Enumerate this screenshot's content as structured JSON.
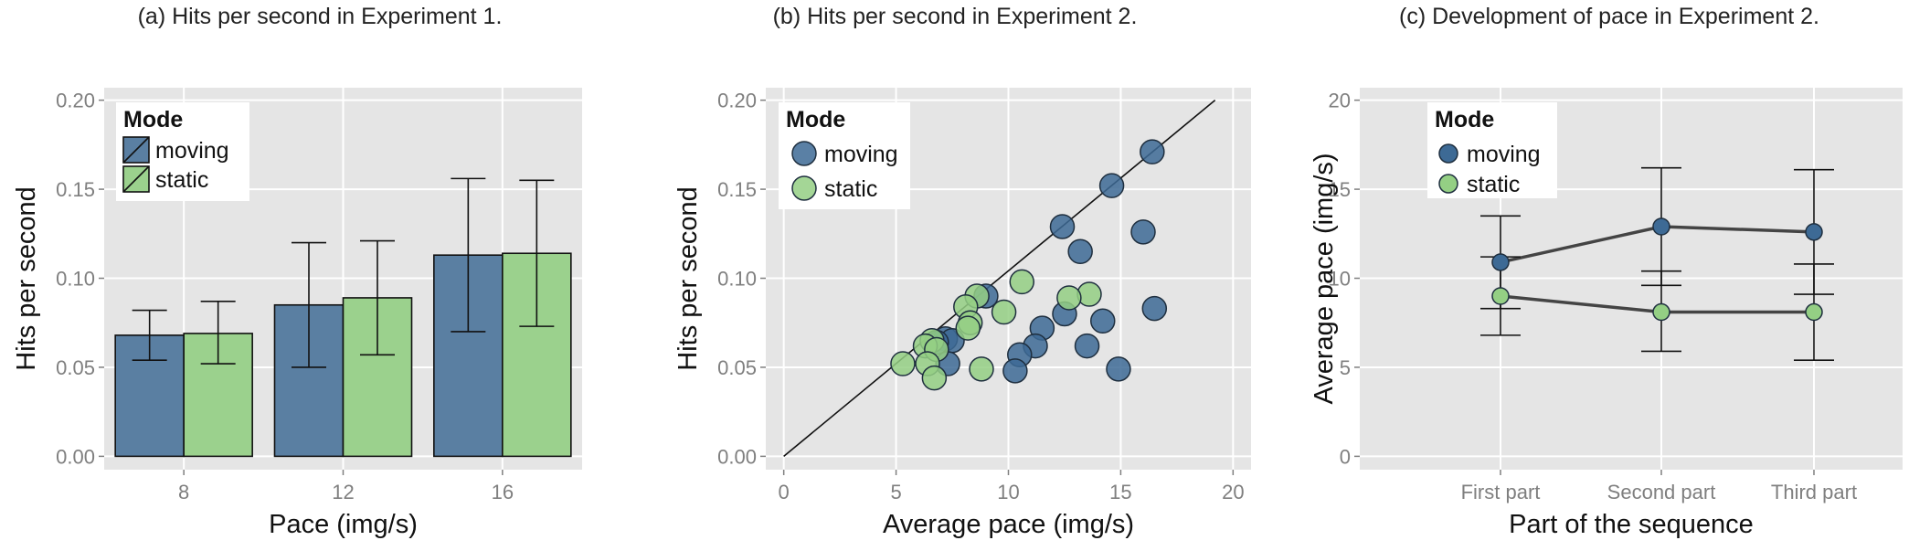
{
  "chart_data": [
    {
      "type": "bar",
      "title": "(a) Hits per second in Experiment 1.",
      "xlabel": "Pace (img/s)",
      "ylabel": "Hits per second",
      "categories": [
        "8",
        "12",
        "16"
      ],
      "yticks": [
        "0.00",
        "0.05",
        "0.10",
        "0.15",
        "0.20"
      ],
      "ylim": [
        -0.0075,
        0.207
      ],
      "grid": true,
      "legend": {
        "title": "Mode",
        "placement": "top-left"
      },
      "series": [
        {
          "name": "moving",
          "color": "#5a7fa2",
          "values": [
            0.068,
            0.085,
            0.113
          ],
          "err_low": [
            0.054,
            0.05,
            0.07
          ],
          "err_high": [
            0.082,
            0.12,
            0.156
          ]
        },
        {
          "name": "static",
          "color": "#9bd18d",
          "values": [
            0.069,
            0.089,
            0.114
          ],
          "err_low": [
            0.052,
            0.057,
            0.073
          ],
          "err_high": [
            0.087,
            0.121,
            0.155
          ]
        }
      ]
    },
    {
      "type": "scatter",
      "title": "(b) Hits per second in Experiment 2.",
      "xlabel": "Average pace (img/s)",
      "ylabel": "Hits per second",
      "xticks": [
        "0",
        "5",
        "10",
        "15",
        "20"
      ],
      "yticks": [
        "0.00",
        "0.05",
        "0.10",
        "0.15",
        "0.20"
      ],
      "xlim": [
        -0.8,
        20.8
      ],
      "ylim": [
        -0.0075,
        0.207
      ],
      "grid": true,
      "reference_line": {
        "x": [
          0,
          19.2
        ],
        "y": [
          0,
          0.2
        ]
      },
      "legend": {
        "title": "Mode",
        "placement": "top-left"
      },
      "series": [
        {
          "name": "moving",
          "color": "#3d6a95",
          "points": [
            [
              16.4,
              0.171
            ],
            [
              14.6,
              0.152
            ],
            [
              12.4,
              0.129
            ],
            [
              16.0,
              0.126
            ],
            [
              13.2,
              0.115
            ],
            [
              9.0,
              0.09
            ],
            [
              16.5,
              0.083
            ],
            [
              12.5,
              0.08
            ],
            [
              14.2,
              0.076
            ],
            [
              11.5,
              0.072
            ],
            [
              7.2,
              0.066
            ],
            [
              7.5,
              0.065
            ],
            [
              6.8,
              0.064
            ],
            [
              11.2,
              0.062
            ],
            [
              13.5,
              0.062
            ],
            [
              10.5,
              0.057
            ],
            [
              7.3,
              0.052
            ],
            [
              10.3,
              0.048
            ],
            [
              14.9,
              0.049
            ]
          ]
        },
        {
          "name": "static",
          "color": "#94cf84",
          "points": [
            [
              10.6,
              0.098
            ],
            [
              8.6,
              0.09
            ],
            [
              13.6,
              0.091
            ],
            [
              12.7,
              0.089
            ],
            [
              8.1,
              0.084
            ],
            [
              9.8,
              0.081
            ],
            [
              8.3,
              0.075
            ],
            [
              8.2,
              0.072
            ],
            [
              6.6,
              0.065
            ],
            [
              6.3,
              0.062
            ],
            [
              6.8,
              0.06
            ],
            [
              5.3,
              0.052
            ],
            [
              6.4,
              0.052
            ],
            [
              8.8,
              0.049
            ],
            [
              6.7,
              0.044
            ]
          ]
        }
      ]
    },
    {
      "type": "line",
      "title": "(c) Development of pace in Experiment 2.",
      "xlabel": "Part of the sequence",
      "ylabel": "Average pace (img/s)",
      "categories": [
        "First part",
        "Second part",
        "Third part"
      ],
      "yticks": [
        "0",
        "5",
        "10",
        "15",
        "20"
      ],
      "ylim": [
        -0.75,
        20.7
      ],
      "grid": true,
      "legend": {
        "title": "Mode",
        "placement": "top-left"
      },
      "series": [
        {
          "name": "moving",
          "color": "#3d6a95",
          "values": [
            10.9,
            12.9,
            12.6
          ],
          "err_low": [
            8.3,
            9.6,
            9.1
          ],
          "err_high": [
            13.5,
            16.2,
            16.1
          ]
        },
        {
          "name": "static",
          "color": "#94cf84",
          "values": [
            9.0,
            8.1,
            8.1
          ],
          "err_low": [
            6.8,
            5.9,
            5.4
          ],
          "err_high": [
            11.2,
            10.4,
            10.8
          ]
        }
      ]
    }
  ]
}
